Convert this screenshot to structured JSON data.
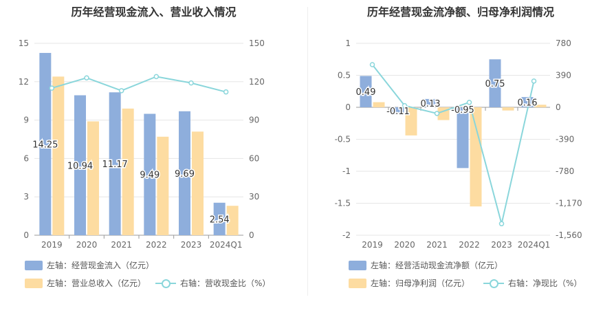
{
  "chart_data": [
    {
      "type": "bar",
      "title": "历年经营现金流入、营业收入情况",
      "categories": [
        "2019",
        "2020",
        "2021",
        "2022",
        "2023",
        "2024Q1"
      ],
      "y_left_ticks": [
        "15",
        "12",
        "9",
        "6",
        "3",
        "0"
      ],
      "y_right_ticks": [
        "150",
        "120",
        "90",
        "60",
        "30",
        "0"
      ],
      "ylim_left": [
        0,
        15
      ],
      "ylim_right": [
        0,
        150
      ],
      "series": [
        {
          "name": "左轴：经营现金流入（亿元）",
          "axis": "left",
          "kind": "bar",
          "color": "#8eaedc",
          "values": [
            14.25,
            10.94,
            11.17,
            9.49,
            9.69,
            2.54
          ],
          "labels": [
            "14.25",
            "10.94",
            "11.17",
            "9.49",
            "9.69",
            "2.54"
          ]
        },
        {
          "name": "左轴：营业总收入（亿元）",
          "axis": "left",
          "kind": "bar",
          "color": "#fddca1",
          "values": [
            12.4,
            8.9,
            9.9,
            7.7,
            8.1,
            2.3
          ]
        },
        {
          "name": "右轴：营收现金比（%）",
          "axis": "right",
          "kind": "line",
          "color": "#8ad6db",
          "values": [
            115,
            123,
            113,
            124,
            119,
            112
          ]
        }
      ]
    },
    {
      "type": "bar",
      "title": "历年经营现金流净额、归母净利润情况",
      "categories": [
        "2019",
        "2020",
        "2021",
        "2022",
        "2023",
        "2024Q1"
      ],
      "y_left_ticks": [
        "1",
        "0.5",
        "0",
        "-0.5",
        "-1",
        "-1.5",
        "-2"
      ],
      "y_right_ticks": [
        "780",
        "390",
        "0",
        "-390",
        "-780",
        "-1,170",
        "-1,560"
      ],
      "ylim_left": [
        -2,
        1
      ],
      "ylim_right": [
        -1560,
        780
      ],
      "series": [
        {
          "name": "左轴：经营活动现金流净额（亿元）",
          "axis": "left",
          "kind": "bar",
          "color": "#8eaedc",
          "values": [
            0.49,
            -0.11,
            0.13,
            -0.95,
            0.75,
            0.16
          ],
          "labels": [
            "0.49",
            "-0.11",
            "0.13",
            "-0.95",
            "0.75",
            "0.16"
          ]
        },
        {
          "name": "左轴：归母净利润（亿元）",
          "axis": "left",
          "kind": "bar",
          "color": "#fddca1",
          "values": [
            0.08,
            -0.44,
            -0.2,
            -1.55,
            -0.05,
            0.04
          ]
        },
        {
          "name": "右轴：净现比（%）",
          "axis": "right",
          "kind": "line",
          "color": "#8ad6db",
          "values": [
            520,
            20,
            -75,
            60,
            -1420,
            320
          ]
        }
      ]
    }
  ]
}
